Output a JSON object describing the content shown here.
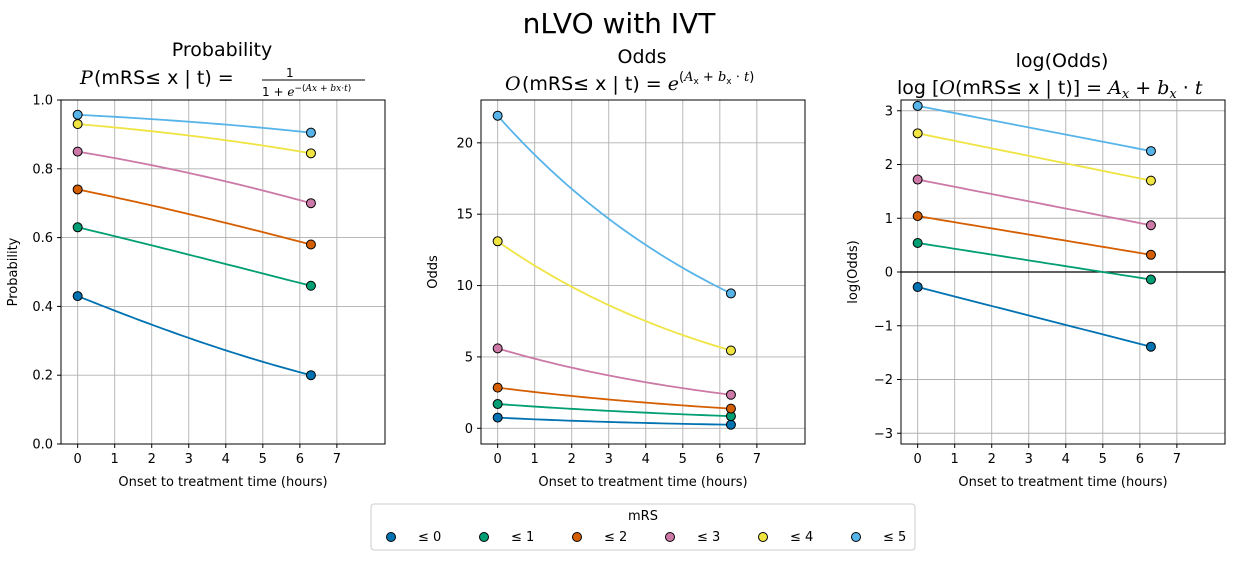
{
  "figure": {
    "suptitle": "nLVO with IVT"
  },
  "legend": {
    "title": "mRS",
    "entries": [
      "≤ 0",
      "≤ 1",
      "≤ 2",
      "≤ 3",
      "≤ 4",
      "≤ 5"
    ]
  },
  "colors": {
    "series": [
      "#0072B2",
      "#009E73",
      "#D55E00",
      "#CC79A7",
      "#F0E442",
      "#56B4E9"
    ],
    "grid": "#b0b0b0"
  },
  "chart_data": [
    {
      "type": "line",
      "panel": "probability",
      "title_line1": "Probability",
      "title_formula": "P(mRS ≤ x | t) = 1/(1+e^{−(Ax+bx·t)})",
      "xlabel": "Onset to treatment time (hours)",
      "ylabel": "Probability",
      "xlim": [
        -0.45,
        8.3
      ],
      "ylim": [
        0,
        1
      ],
      "xticks": [
        0,
        1,
        2,
        3,
        4,
        5,
        6,
        7
      ],
      "xtick_labels": [
        "0",
        "1",
        "2",
        "3",
        "4",
        "5",
        "6",
        "7"
      ],
      "yticks": [
        0,
        0.2,
        0.4,
        0.6,
        0.8,
        1.0
      ],
      "ytick_labels": [
        "0.0",
        "0.2",
        "0.4",
        "0.6",
        "0.8",
        "1.0"
      ],
      "grid": true,
      "endpoints_x": [
        0,
        6.3
      ],
      "series": [
        {
          "start": 0.43,
          "end": 0.2
        },
        {
          "start": 0.63,
          "end": 0.46
        },
        {
          "start": 0.74,
          "end": 0.58
        },
        {
          "start": 0.85,
          "end": 0.7
        },
        {
          "start": 0.93,
          "end": 0.845
        },
        {
          "start": 0.957,
          "end": 0.905
        }
      ]
    },
    {
      "type": "line",
      "panel": "odds",
      "title_line1": "Odds",
      "title_formula": "O(mRS ≤ x | t) = e^{(Ax + bx·t)}",
      "xlabel": "Onset to treatment time (hours)",
      "ylabel": "Odds",
      "xlim": [
        -0.45,
        8.3
      ],
      "ylim": [
        -1.1,
        23.0
      ],
      "xticks": [
        0,
        1,
        2,
        3,
        4,
        5,
        6,
        7
      ],
      "xtick_labels": [
        "0",
        "1",
        "2",
        "3",
        "4",
        "5",
        "6",
        "7"
      ],
      "yticks": [
        0,
        5,
        10,
        15,
        20
      ],
      "ytick_labels": [
        "0",
        "5",
        "10",
        "15",
        "20"
      ],
      "grid": true,
      "endpoints_x": [
        0,
        6.3
      ],
      "series": [
        {
          "start": 0.75,
          "end": 0.25
        },
        {
          "start": 1.7,
          "end": 0.85
        },
        {
          "start": 2.85,
          "end": 1.38
        },
        {
          "start": 5.6,
          "end": 2.35
        },
        {
          "start": 13.1,
          "end": 5.45
        },
        {
          "start": 21.9,
          "end": 9.45
        }
      ]
    },
    {
      "type": "line",
      "panel": "log-odds",
      "title_line1": "log(Odds)",
      "title_formula": "log[O(mRS ≤ x | t)] = Ax + bx·t",
      "xlabel": "Onset to treatment time (hours)",
      "ylabel": "log(Odds)",
      "xlim": [
        -0.45,
        8.3
      ],
      "ylim": [
        -3.2,
        3.2
      ],
      "xticks": [
        0,
        1,
        2,
        3,
        4,
        5,
        6,
        7
      ],
      "xtick_labels": [
        "0",
        "1",
        "2",
        "3",
        "4",
        "5",
        "6",
        "7"
      ],
      "yticks": [
        -3,
        -2,
        -1,
        0,
        1,
        2,
        3
      ],
      "ytick_labels": [
        "−3",
        "−2",
        "−1",
        "0",
        "1",
        "2",
        "3"
      ],
      "grid": true,
      "zero_line": true,
      "endpoints_x": [
        0,
        6.3
      ],
      "series": [
        {
          "start": -0.28,
          "end": -1.39
        },
        {
          "start": 0.54,
          "end": -0.14
        },
        {
          "start": 1.04,
          "end": 0.32
        },
        {
          "start": 1.72,
          "end": 0.87
        },
        {
          "start": 2.58,
          "end": 1.7
        },
        {
          "start": 3.09,
          "end": 2.25
        }
      ]
    }
  ]
}
